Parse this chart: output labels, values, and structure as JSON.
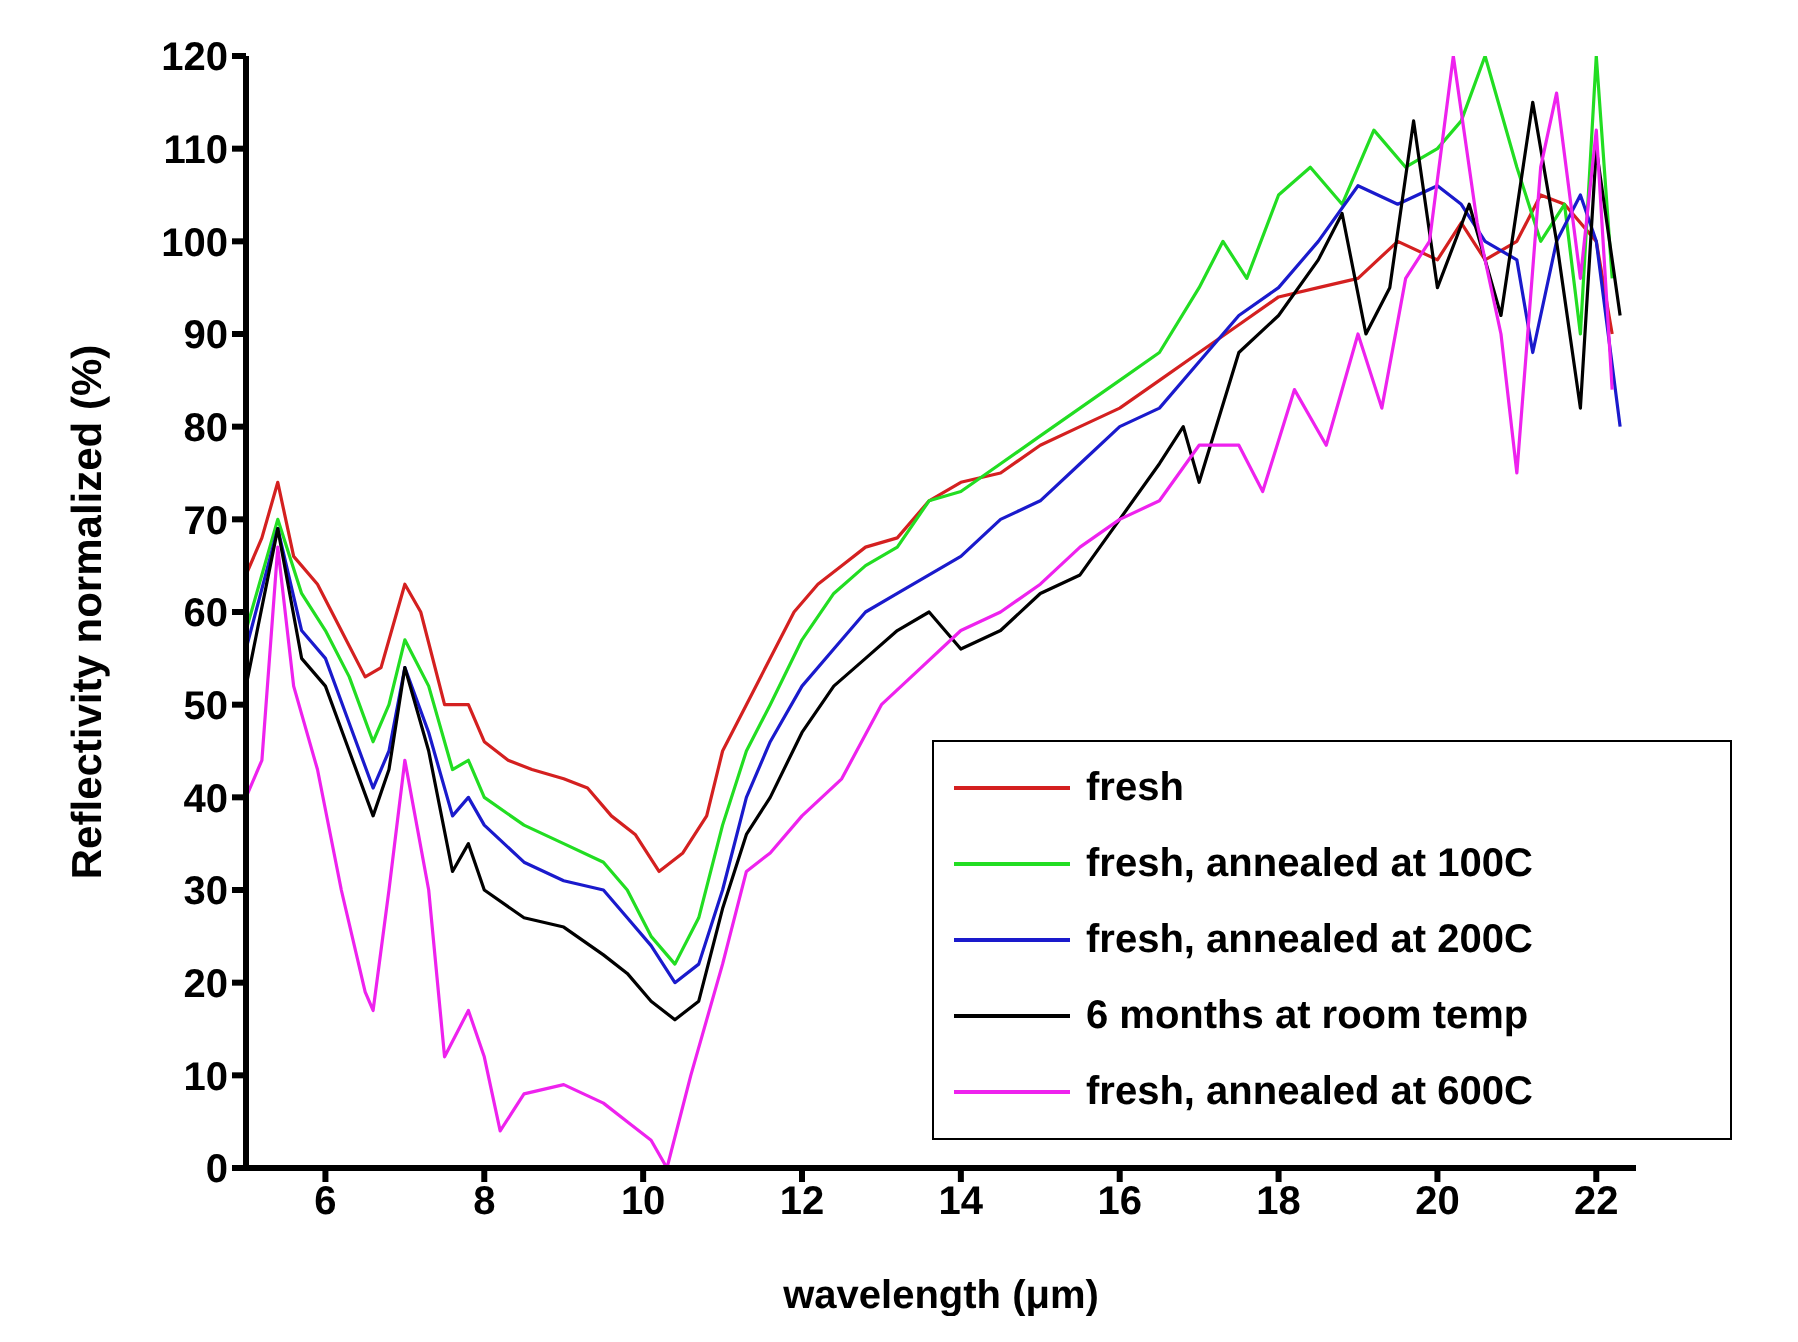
{
  "chart_data": {
    "type": "line",
    "xlabel": "wavelength (μm)",
    "ylabel": "Reflectivity normalized (%)",
    "xlim": [
      5,
      22.5
    ],
    "xticks": [
      6,
      8,
      10,
      12,
      14,
      16,
      18,
      20,
      22
    ],
    "ylim": [
      0,
      120
    ],
    "yticks": [
      0,
      10,
      20,
      30,
      40,
      50,
      60,
      70,
      80,
      90,
      100,
      110,
      120
    ],
    "grid": false,
    "legend": "bottom right",
    "marker": "none",
    "line_style": "solid",
    "series": [
      {
        "name": "fresh",
        "color": "#d42020",
        "x": [
          5.0,
          5.2,
          5.4,
          5.6,
          5.9,
          6.2,
          6.5,
          6.7,
          7.0,
          7.2,
          7.5,
          7.8,
          8.0,
          8.3,
          8.6,
          9.0,
          9.3,
          9.6,
          9.9,
          10.2,
          10.5,
          10.8,
          11.0,
          11.3,
          11.6,
          11.9,
          12.2,
          12.5,
          12.8,
          13.2,
          13.6,
          14.0,
          14.5,
          15.0,
          15.5,
          16.0,
          16.5,
          17.0,
          17.5,
          18.0,
          18.5,
          19.0,
          19.5,
          20.0,
          20.3,
          20.6,
          21.0,
          21.3,
          21.6,
          22.0,
          22.2
        ],
        "values": [
          64,
          68,
          74,
          66,
          63,
          58,
          53,
          54,
          63,
          60,
          50,
          50,
          46,
          44,
          43,
          42,
          41,
          38,
          36,
          32,
          34,
          38,
          45,
          50,
          55,
          60,
          63,
          65,
          67,
          68,
          72,
          74,
          75,
          78,
          80,
          82,
          85,
          88,
          91,
          94,
          95,
          96,
          100,
          98,
          102,
          98,
          100,
          105,
          104,
          100,
          90
        ]
      },
      {
        "name": "fresh, annealed at 100C",
        "color": "#22dd22",
        "x": [
          5.0,
          5.4,
          5.7,
          6.0,
          6.3,
          6.6,
          6.8,
          7.0,
          7.3,
          7.6,
          7.8,
          8.0,
          8.5,
          9.0,
          9.5,
          9.8,
          10.1,
          10.4,
          10.7,
          11.0,
          11.3,
          11.6,
          12.0,
          12.4,
          12.8,
          13.2,
          13.6,
          14.0,
          14.5,
          15.0,
          15.5,
          16.0,
          16.5,
          17.0,
          17.3,
          17.6,
          18.0,
          18.4,
          18.8,
          19.2,
          19.6,
          20.0,
          20.3,
          20.6,
          21.0,
          21.3,
          21.6,
          21.8,
          22.0,
          22.2
        ],
        "values": [
          58,
          70,
          62,
          58,
          53,
          46,
          50,
          57,
          52,
          43,
          44,
          40,
          37,
          35,
          33,
          30,
          25,
          22,
          27,
          37,
          45,
          50,
          57,
          62,
          65,
          67,
          72,
          73,
          76,
          79,
          82,
          85,
          88,
          95,
          100,
          96,
          105,
          108,
          104,
          112,
          108,
          110,
          113,
          120,
          108,
          100,
          104,
          90,
          120,
          96
        ]
      },
      {
        "name": "fresh, annealed at 200C",
        "color": "#1a1acc",
        "x": [
          5.0,
          5.4,
          5.7,
          6.0,
          6.3,
          6.6,
          6.8,
          7.0,
          7.3,
          7.6,
          7.8,
          8.0,
          8.5,
          9.0,
          9.5,
          9.8,
          10.1,
          10.4,
          10.7,
          11.0,
          11.3,
          11.6,
          12.0,
          12.4,
          12.8,
          13.2,
          13.6,
          14.0,
          14.5,
          15.0,
          15.5,
          16.0,
          16.5,
          17.0,
          17.5,
          18.0,
          18.5,
          19.0,
          19.5,
          20.0,
          20.3,
          20.6,
          21.0,
          21.2,
          21.5,
          21.8,
          22.0,
          22.3
        ],
        "values": [
          56,
          69,
          58,
          55,
          48,
          41,
          45,
          54,
          47,
          38,
          40,
          37,
          33,
          31,
          30,
          27,
          24,
          20,
          22,
          30,
          40,
          46,
          52,
          56,
          60,
          62,
          64,
          66,
          70,
          72,
          76,
          80,
          82,
          87,
          92,
          95,
          100,
          106,
          104,
          106,
          104,
          100,
          98,
          88,
          100,
          105,
          100,
          80
        ]
      },
      {
        "name": "6 months at room temp",
        "color": "#000000",
        "x": [
          5.0,
          5.4,
          5.7,
          6.0,
          6.3,
          6.6,
          6.8,
          7.0,
          7.3,
          7.6,
          7.8,
          8.0,
          8.5,
          9.0,
          9.5,
          9.8,
          10.1,
          10.4,
          10.7,
          11.0,
          11.3,
          11.6,
          12.0,
          12.4,
          12.8,
          13.2,
          13.6,
          14.0,
          14.5,
          15.0,
          15.5,
          16.0,
          16.5,
          16.8,
          17.0,
          17.5,
          18.0,
          18.5,
          18.8,
          19.1,
          19.4,
          19.7,
          20.0,
          20.4,
          20.8,
          21.2,
          21.5,
          21.8,
          22.0,
          22.3
        ],
        "values": [
          52,
          69,
          55,
          52,
          45,
          38,
          43,
          54,
          45,
          32,
          35,
          30,
          27,
          26,
          23,
          21,
          18,
          16,
          18,
          28,
          36,
          40,
          47,
          52,
          55,
          58,
          60,
          56,
          58,
          62,
          64,
          70,
          76,
          80,
          74,
          88,
          92,
          98,
          103,
          90,
          95,
          113,
          95,
          104,
          92,
          115,
          100,
          82,
          110,
          92
        ]
      },
      {
        "name": "fresh, annealed at 600C",
        "color": "#ee22ee",
        "x": [
          5.0,
          5.2,
          5.4,
          5.6,
          5.9,
          6.2,
          6.5,
          6.6,
          6.8,
          7.0,
          7.3,
          7.5,
          7.8,
          8.0,
          8.2,
          8.5,
          9.0,
          9.5,
          9.8,
          10.1,
          10.3,
          10.6,
          11.0,
          11.3,
          11.6,
          12.0,
          12.5,
          13.0,
          13.5,
          14.0,
          14.5,
          15.0,
          15.5,
          16.0,
          16.5,
          17.0,
          17.5,
          17.8,
          18.2,
          18.6,
          19.0,
          19.3,
          19.6,
          19.9,
          20.2,
          20.5,
          20.8,
          21.0,
          21.3,
          21.5,
          21.8,
          22.0,
          22.2
        ],
        "values": [
          40,
          44,
          67,
          52,
          43,
          30,
          19,
          17,
          30,
          44,
          30,
          12,
          17,
          12,
          4,
          8,
          9,
          7,
          5,
          3,
          0,
          10,
          22,
          32,
          34,
          38,
          42,
          50,
          54,
          58,
          60,
          63,
          67,
          70,
          72,
          78,
          78,
          73,
          84,
          78,
          90,
          82,
          96,
          100,
          120,
          102,
          90,
          75,
          108,
          116,
          96,
          112,
          84
        ]
      }
    ]
  }
}
